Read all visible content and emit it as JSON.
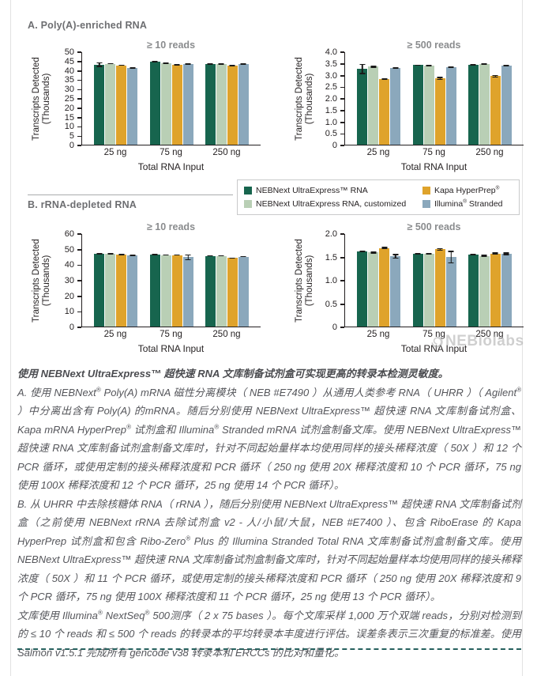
{
  "page": {
    "section_a_title": "A. Poly(A)-enriched RNA",
    "section_b_title": "B. rRNA-depleted RNA",
    "watermark_text": "NEBiolabs"
  },
  "colors": {
    "dark_green": "#17654e",
    "light_green": "#b9cfb5",
    "gold": "#dfa32b",
    "blue_gray": "#8ba8bc",
    "axis": "#231f20",
    "chart_title_gray": "#8a8c8e",
    "heading_gray": "#6d6e71",
    "dashed_rule_teal": "#26605e"
  },
  "legend": {
    "items": [
      {
        "label": "NEBNext UltraExpress™ RNA",
        "color": "#17654e"
      },
      {
        "label": "NEBNext UltraExpress RNA, customized",
        "color": "#b9cfb5"
      },
      {
        "label": "Kapa HyperPrep®",
        "color": "#dfa32b"
      },
      {
        "label": "Illumina® Stranded",
        "color": "#8ba8bc"
      }
    ]
  },
  "chart_data": [
    {
      "type": "bar",
      "section": "A",
      "title": "≥ 10 reads",
      "ylabel": [
        "Transcripts Detected",
        "(Thousands)"
      ],
      "xlabel": "Total RNA Input",
      "categories": [
        "25 ng",
        "75 ng",
        "250 ng"
      ],
      "ylim": [
        0,
        50
      ],
      "yticks": [
        "0",
        "5",
        "10",
        "15",
        "20",
        "25",
        "30",
        "35",
        "40",
        "45",
        "50"
      ],
      "grid": false,
      "series": [
        {
          "name": "NEBNext UltraExpress™ RNA",
          "color": "#17654e",
          "values": [
            43.2,
            45.0,
            43.5
          ],
          "errors": [
            1.3,
            0.4,
            0.3
          ]
        },
        {
          "name": "NEBNext UltraExpress RNA, customized",
          "color": "#b9cfb5",
          "values": [
            43.8,
            43.9,
            43.5
          ],
          "errors": [
            0.3,
            0.3,
            0.3
          ]
        },
        {
          "name": "Kapa HyperPrep®",
          "color": "#dfa32b",
          "values": [
            42.9,
            43.2,
            42.7
          ],
          "errors": [
            0.3,
            0.4,
            0.4
          ]
        },
        {
          "name": "Illumina® Stranded",
          "color": "#8ba8bc",
          "values": [
            41.6,
            43.7,
            43.6
          ],
          "errors": [
            0.4,
            0.3,
            0.3
          ]
        }
      ]
    },
    {
      "type": "bar",
      "section": "A",
      "title": "≥ 500 reads",
      "ylabel": [
        "Transcripts Detected",
        "(Thousands)"
      ],
      "xlabel": "Total RNA Input",
      "categories": [
        "25 ng",
        "75 ng",
        "250 ng"
      ],
      "ylim": [
        0,
        4.0
      ],
      "yticks": [
        "0",
        "0.5",
        "1.0",
        "1.5",
        "2.0",
        "2.5",
        "3.0",
        "3.5",
        "4.0"
      ],
      "grid": false,
      "series": [
        {
          "name": "NEBNext UltraExpress™ RNA",
          "color": "#17654e",
          "values": [
            3.27,
            3.44,
            3.46
          ],
          "errors": [
            0.22,
            0.03,
            0.03
          ]
        },
        {
          "name": "NEBNext UltraExpress RNA, customized",
          "color": "#b9cfb5",
          "values": [
            3.37,
            3.43,
            3.48
          ],
          "errors": [
            0.05,
            0.03,
            0.03
          ]
        },
        {
          "name": "Kapa HyperPrep®",
          "color": "#dfa32b",
          "values": [
            2.83,
            2.86,
            2.96
          ],
          "errors": [
            0.03,
            0.07,
            0.06
          ]
        },
        {
          "name": "Illumina® Stranded",
          "color": "#8ba8bc",
          "values": [
            3.31,
            3.36,
            3.43
          ],
          "errors": [
            0.04,
            0.03,
            0.03
          ]
        }
      ]
    },
    {
      "type": "bar",
      "section": "B",
      "title": "≥ 10 reads",
      "ylabel": [
        "Transcripts Detected",
        "(Thousands)"
      ],
      "xlabel": "Total RNA Input",
      "categories": [
        "25 ng",
        "75 ng",
        "250 ng"
      ],
      "ylim": [
        0,
        60
      ],
      "yticks": [
        "0",
        "10",
        "20",
        "30",
        "40",
        "50",
        "60"
      ],
      "grid": false,
      "series": [
        {
          "name": "NEBNext UltraExpress™ RNA",
          "color": "#17654e",
          "values": [
            47.3,
            46.8,
            45.9
          ],
          "errors": [
            0.5,
            0.4,
            0.4
          ]
        },
        {
          "name": "NEBNext UltraExpress RNA, customized",
          "color": "#b9cfb5",
          "values": [
            47.4,
            46.4,
            45.9
          ],
          "errors": [
            0.5,
            0.4,
            0.4
          ]
        },
        {
          "name": "Kapa HyperPrep®",
          "color": "#dfa32b",
          "values": [
            46.6,
            46.4,
            44.4
          ],
          "errors": [
            0.5,
            0.4,
            0.3
          ]
        },
        {
          "name": "Illumina® Stranded",
          "color": "#8ba8bc",
          "values": [
            46.0,
            44.9,
            45.3
          ],
          "errors": [
            0.3,
            2.0,
            0.4
          ]
        }
      ]
    },
    {
      "type": "bar",
      "section": "B",
      "title": "≥ 500 reads",
      "ylabel": [
        "Transcripts Detected",
        "(Thousands)"
      ],
      "xlabel": "Total RNA Input",
      "categories": [
        "25 ng",
        "75 ng",
        "250 ng"
      ],
      "ylim": [
        0,
        2.0
      ],
      "yticks": [
        "0",
        "0.5",
        "1.0",
        "1.5",
        "2.0"
      ],
      "grid": false,
      "series": [
        {
          "name": "NEBNext UltraExpress™ RNA",
          "color": "#17654e",
          "values": [
            1.62,
            1.57,
            1.56
          ],
          "errors": [
            0.02,
            0.02,
            0.02
          ]
        },
        {
          "name": "NEBNext UltraExpress RNA, customized",
          "color": "#b9cfb5",
          "values": [
            1.6,
            1.57,
            1.53
          ],
          "errors": [
            0.02,
            0.02,
            0.02
          ]
        },
        {
          "name": "Kapa HyperPrep®",
          "color": "#dfa32b",
          "values": [
            1.7,
            1.67,
            1.58
          ],
          "errors": [
            0.02,
            0.03,
            0.02
          ]
        },
        {
          "name": "Illumina® Stranded",
          "color": "#8ba8bc",
          "values": [
            1.52,
            1.5,
            1.57
          ],
          "errors": [
            0.05,
            0.14,
            0.03
          ]
        }
      ]
    }
  ],
  "caption": {
    "paragraphs": [
      "使用 NEBNext UltraExpress™ 超快速 RNA 文库制备试剂盒可实现更高的转录本检测灵敏度。",
      "A. 使用 NEBNext® Poly(A) mRNA 磁性分离模块（ NEB #E7490 ）从通用人类参考 RNA（ UHRR ）（ Agilent® ）中分离出含有 Poly(A) 的mRNA。随后分别使用 NEBNext UltraExpress™ 超快速 RNA 文库制备试剂盒、Kapa mRNA HyperPrep® 试剂盒和 Illumina® Stranded mRNA 试剂盒制备文库。使用 NEBNext UltraExpress™ 超快速 RNA 文库制备试剂盒制备文库时，针对不同起始量样本均使用同样的接头稀释浓度（ 50X ）和 12 个 PCR 循环，或使用定制的接头稀释浓度和 PCR 循环（ 250 ng 使用 20X 稀释浓度和 10 个 PCR 循环，75 ng 使用 100X 稀释浓度和 12 个 PCR 循环，25 ng 使用 14 个 PCR 循环）。",
      "B. 从 UHRR 中去除核糖体 RNA（ rRNA ），随后分别使用 NEBNext UltraExpress™ 超快速 RNA 文库制备试剂盒（之前使用 NEBNext rRNA 去除试剂盒 v2 - 人/小鼠/大鼠，NEB #E7400 ）、包含 RiboErase 的 Kapa HyperPrep 试剂盒和包含 Ribo-Zero® Plus 的 Illumina Stranded Total RNA 文库制备试剂盒制备文库。使用 NEBNext UltraExpress™ 超快速 RNA 文库制备试剂盒制备文库时，针对不同起始量样本均使用同样的接头稀释浓度（ 50X ）和 11 个 PCR 循环，或使用定制的接头稀释浓度和 PCR 循环（ 250 ng 使用 20X 稀释浓度和 9 个 PCR 循环，75 ng 使用 100X 稀释浓度和 11 个 PCR 循环，25 ng 使用 13 个 PCR 循环）。",
      "文库使用 Illumina® NextSeq® 500测序（ 2 x 75 bases ）。每个文库采样 1,000 万个双端 reads，分别对检测到的 ≤ 10 个 reads 和 ≤ 500 个 reads 的转录本的平均转录本丰度进行评估。误差条表示三次重复的标准差。使用 Salmon v1.5.1 完成所有 gencode v38 转录本和 ERCCs 的比对和量化。"
    ]
  }
}
